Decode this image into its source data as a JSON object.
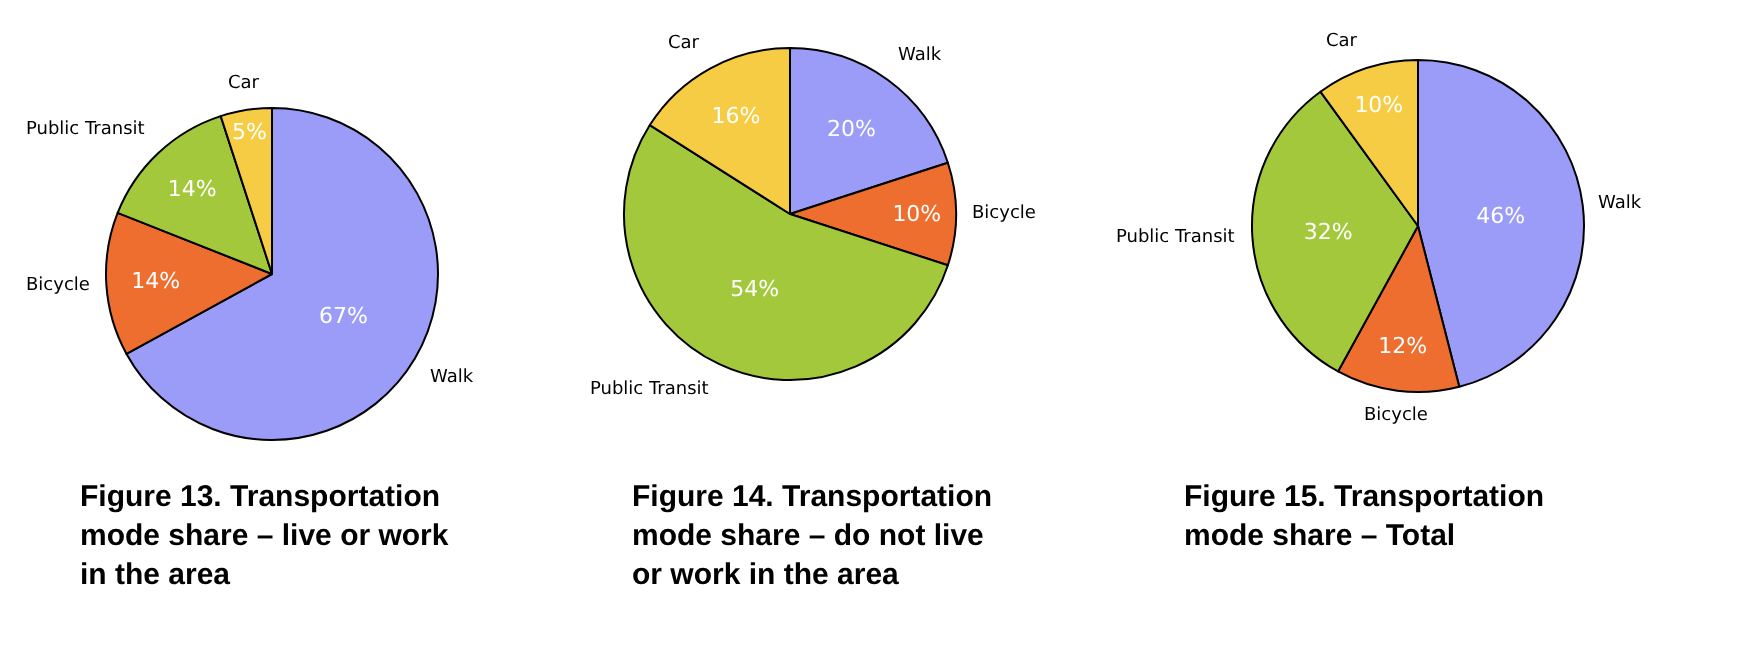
{
  "chart_data": [
    {
      "type": "pie",
      "title": "Figure 13. Transportation mode share – live or work in the area",
      "categories": [
        "Walk",
        "Bicycle",
        "Public Transit",
        "Car"
      ],
      "values": [
        67,
        14,
        14,
        5
      ],
      "colors": [
        "#9b9cf7",
        "#ee6e2f",
        "#a3c83c",
        "#f7cc45"
      ],
      "value_labels": [
        "67%",
        "14%",
        "14%",
        "5%"
      ]
    },
    {
      "type": "pie",
      "title": "Figure 14. Transportation mode share – do not live or work in the area",
      "categories": [
        "Walk",
        "Bicycle",
        "Public Transit",
        "Car"
      ],
      "values": [
        20,
        10,
        54,
        16
      ],
      "colors": [
        "#9b9cf7",
        "#ee6e2f",
        "#a3c83c",
        "#f7cc45"
      ],
      "value_labels": [
        "20%",
        "10%",
        "54%",
        "16%"
      ]
    },
    {
      "type": "pie",
      "title": "Figure 15. Transportation mode share – Total",
      "categories": [
        "Walk",
        "Bicycle",
        "Public Transit",
        "Car"
      ],
      "values": [
        46,
        12,
        32,
        10
      ],
      "colors": [
        "#9b9cf7",
        "#ee6e2f",
        "#a3c83c",
        "#f7cc45"
      ],
      "value_labels": [
        "46%",
        "12%",
        "32%",
        "10%"
      ]
    }
  ]
}
